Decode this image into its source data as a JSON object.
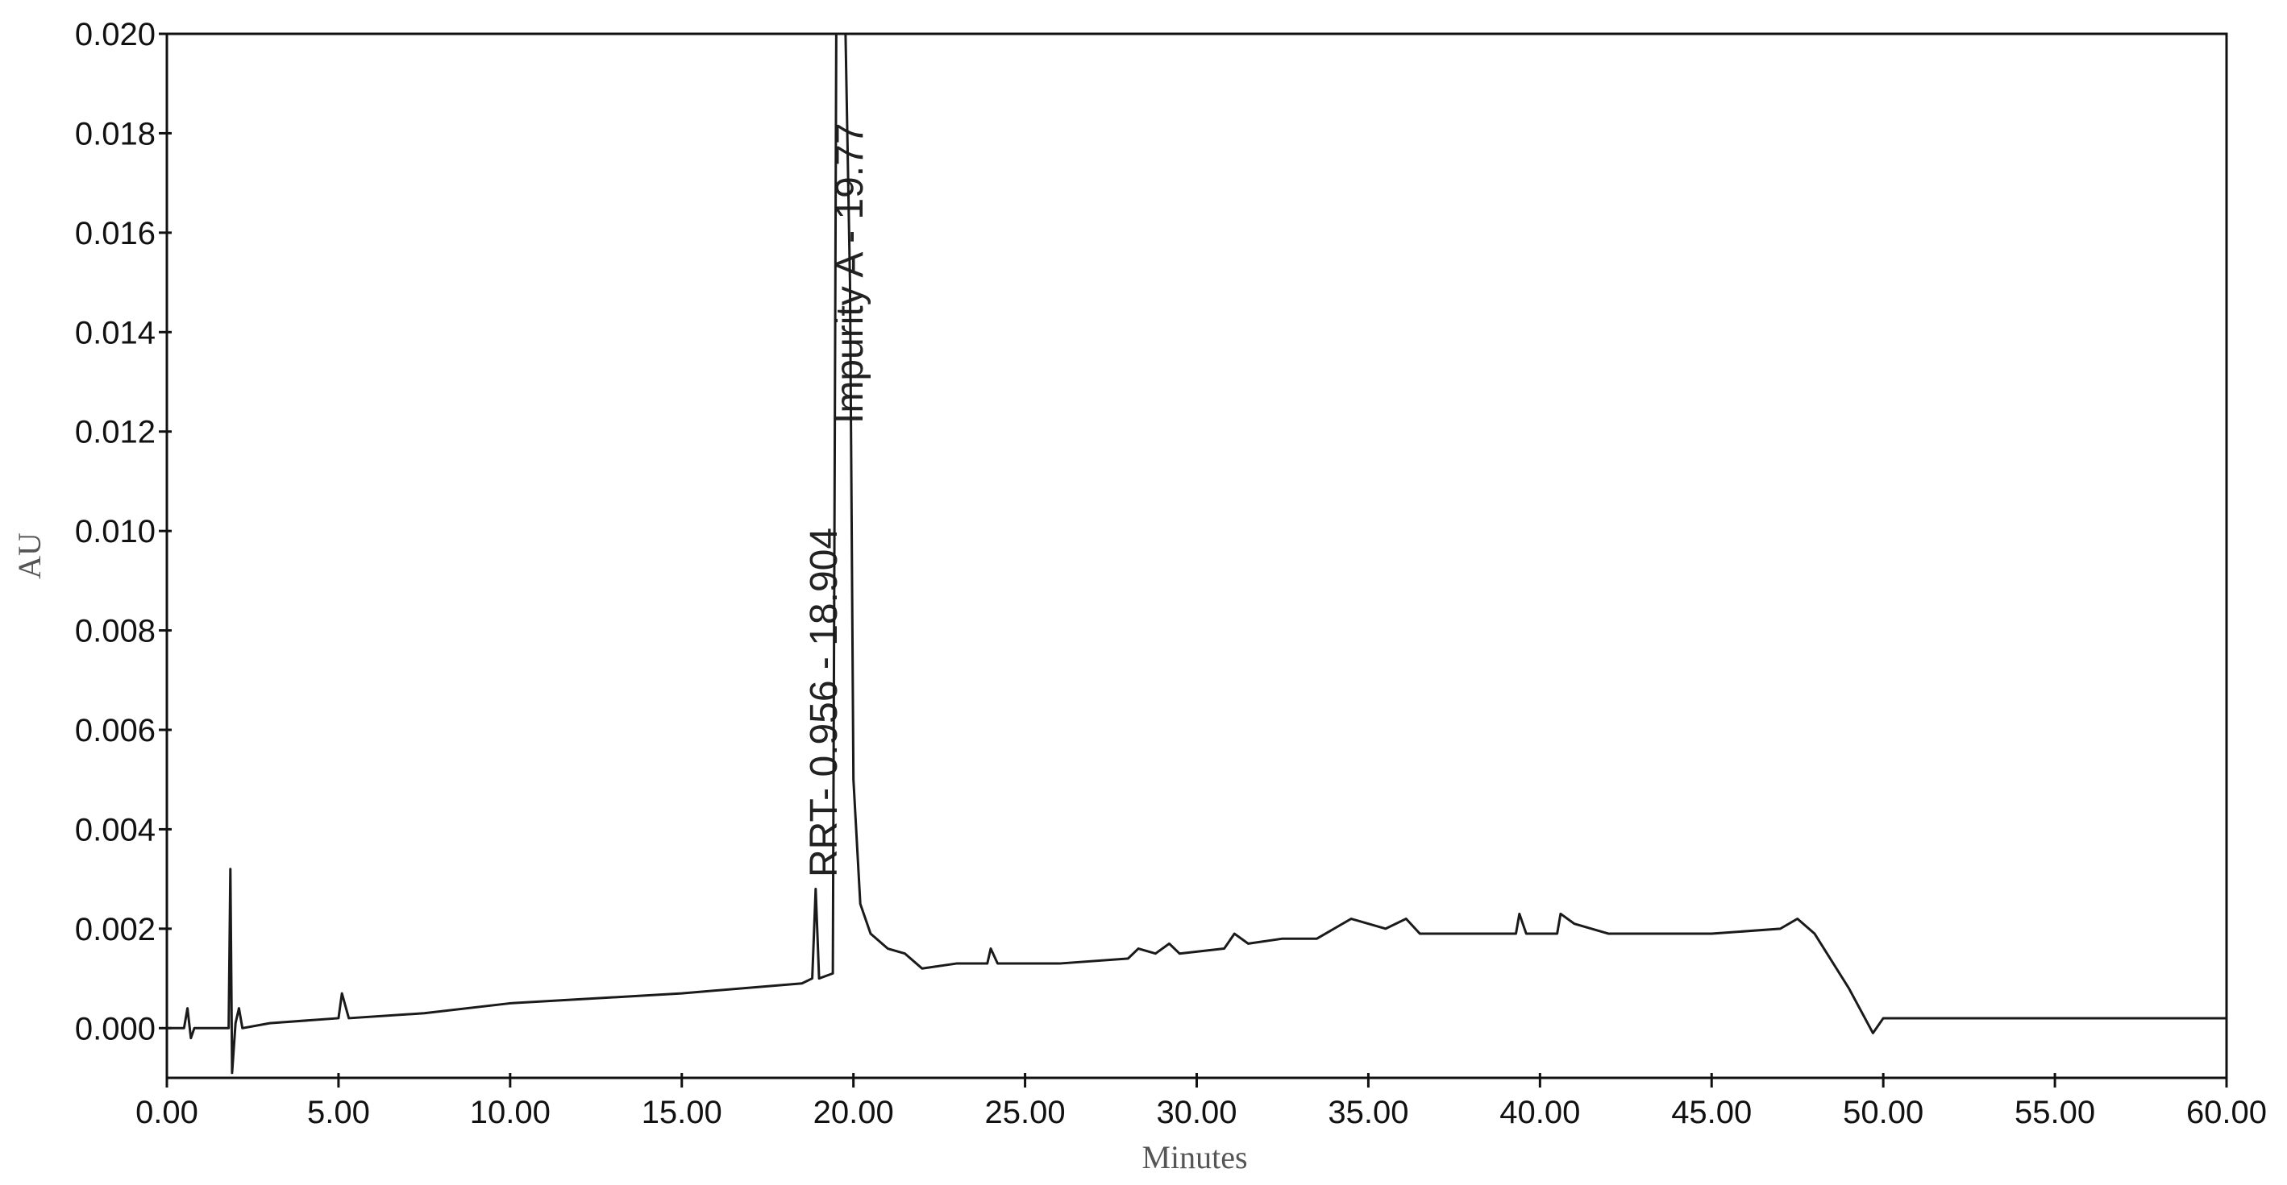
{
  "chart_data": {
    "type": "line",
    "x_label": "Minutes",
    "y_label": "AU",
    "annotations": [
      "RRT- 0.956 - 18.904",
      "Impurity A - 19.77"
    ],
    "color": "#1a1a1a",
    "xlim": [
      0,
      60
    ],
    "ylim": [
      -0.001,
      0.02
    ],
    "xticks": [
      {
        "value": 0,
        "label": "0.00"
      },
      {
        "value": 5,
        "label": "5.00"
      },
      {
        "value": 10,
        "label": "10.00"
      },
      {
        "value": 15,
        "label": "15.00"
      },
      {
        "value": 20,
        "label": "20.00"
      },
      {
        "value": 25,
        "label": "25.00"
      },
      {
        "value": 30,
        "label": "30.00"
      },
      {
        "value": 35,
        "label": "35.00"
      },
      {
        "value": 40,
        "label": "40.00"
      },
      {
        "value": 45,
        "label": "45.00"
      },
      {
        "value": 50,
        "label": "50.00"
      },
      {
        "value": 55,
        "label": "55.00"
      },
      {
        "value": 60,
        "label": "60.00"
      }
    ],
    "yticks": [
      {
        "value": 0,
        "label": "0.000"
      },
      {
        "value": 0.002,
        "label": "0.002"
      },
      {
        "value": 0.004,
        "label": "0.004"
      },
      {
        "value": 0.006,
        "label": "0.006"
      },
      {
        "value": 0.008,
        "label": "0.008"
      },
      {
        "value": 0.01,
        "label": "0.010"
      },
      {
        "value": 0.012,
        "label": "0.012"
      },
      {
        "value": 0.014,
        "label": "0.014"
      },
      {
        "value": 0.016,
        "label": "0.016"
      },
      {
        "value": 0.018,
        "label": "0.018"
      },
      {
        "value": 0.02,
        "label": "0.020"
      }
    ],
    "x": [
      0,
      0.5,
      0.6,
      0.7,
      0.8,
      1.8,
      1.85,
      1.9,
      2.0,
      2.1,
      2.2,
      3,
      5.0,
      5.1,
      5.3,
      7.5,
      10,
      15,
      18.5,
      18.8,
      18.9,
      19.0,
      19.4,
      19.5,
      19.77,
      19.9,
      20.0,
      20.2,
      20.5,
      21,
      21.5,
      22,
      23,
      23.9,
      24,
      24.2,
      26,
      28,
      28.3,
      28.8,
      29.2,
      29.5,
      30.8,
      31.1,
      31.5,
      32.5,
      33.5,
      34.5,
      35.5,
      36.1,
      36.5,
      38,
      39.3,
      39.4,
      39.6,
      40.5,
      40.6,
      41,
      42,
      45,
      47,
      47.5,
      48,
      49,
      49.7,
      50,
      55,
      60
    ],
    "values": [
      0.0,
      0.0,
      0.0004,
      -0.0002,
      0.0,
      0.0,
      0.0032,
      -0.0009,
      0.0001,
      0.0004,
      0.0,
      0.0001,
      0.0002,
      0.0007,
      0.0002,
      0.0003,
      0.0005,
      0.0007,
      0.0009,
      0.001,
      0.0028,
      0.001,
      0.0011,
      0.02,
      0.02,
      0.015,
      0.005,
      0.0025,
      0.0019,
      0.0016,
      0.0015,
      0.0012,
      0.0013,
      0.0013,
      0.0016,
      0.0013,
      0.0013,
      0.0014,
      0.0016,
      0.0015,
      0.0017,
      0.0015,
      0.0016,
      0.0019,
      0.0017,
      0.0018,
      0.0018,
      0.0022,
      0.002,
      0.0022,
      0.0019,
      0.0019,
      0.0019,
      0.0023,
      0.0019,
      0.0019,
      0.0023,
      0.0021,
      0.0019,
      0.0019,
      0.002,
      0.0022,
      0.0019,
      0.0008,
      -0.0001,
      0.0002,
      0.0002,
      0.0002
    ]
  }
}
